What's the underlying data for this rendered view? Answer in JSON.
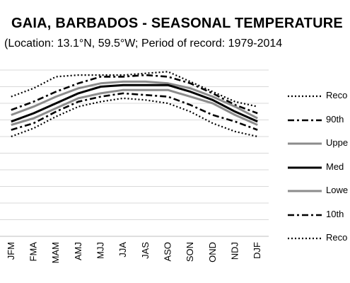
{
  "chart_data": {
    "type": "line",
    "title": "GAIA, BARBADOS - SEASONAL TEMPERATURE",
    "subtitle": "(Location: 13.1°N, 59.5°W; Period of record: 1979-2014",
    "categories": [
      "JFM",
      "FMA",
      "MAM",
      "AMJ",
      "MJJ",
      "JJA",
      "JAS",
      "ASO",
      "SON",
      "OND",
      "NDJ",
      "DJF"
    ],
    "ylim": [
      0,
      10
    ],
    "grid": true,
    "legend_position": "right",
    "series": [
      {
        "name": "Reco",
        "style": "dotted",
        "color": "#000000",
        "width": 2.2,
        "values": [
          8.4,
          8.9,
          9.6,
          9.7,
          9.7,
          9.7,
          9.8,
          9.9,
          9.3,
          8.7,
          8.1,
          7.8
        ]
      },
      {
        "name": "90th",
        "style": "dashdot",
        "color": "#000000",
        "width": 2.6,
        "values": [
          7.6,
          8.1,
          8.7,
          9.2,
          9.6,
          9.6,
          9.7,
          9.6,
          9.2,
          8.6,
          7.9,
          7.4
        ]
      },
      {
        "name": "Uppe",
        "style": "solid",
        "color": "#8c8c8c",
        "width": 3,
        "values": [
          7.3,
          7.8,
          8.4,
          8.9,
          9.2,
          9.3,
          9.3,
          9.2,
          8.9,
          8.4,
          7.8,
          7.1
        ]
      },
      {
        "name": "Med",
        "style": "solid",
        "color": "#000000",
        "width": 3,
        "values": [
          6.9,
          7.4,
          8.0,
          8.6,
          9.0,
          9.1,
          9.1,
          9.1,
          8.7,
          8.2,
          7.5,
          6.9
        ]
      },
      {
        "name": "Lowe",
        "style": "solid",
        "color": "#8c8c8c",
        "width": 3,
        "values": [
          6.7,
          7.1,
          7.7,
          8.3,
          8.6,
          8.8,
          8.8,
          8.8,
          8.4,
          8.0,
          7.3,
          6.7
        ]
      },
      {
        "name": "10th",
        "style": "dashdot",
        "color": "#000000",
        "width": 2.6,
        "values": [
          6.4,
          6.8,
          7.5,
          8.1,
          8.4,
          8.6,
          8.5,
          8.4,
          7.9,
          7.3,
          6.9,
          6.4
        ]
      },
      {
        "name": "Reco",
        "style": "dotted",
        "color": "#000000",
        "width": 2.2,
        "values": [
          6.0,
          6.5,
          7.2,
          7.8,
          8.1,
          8.3,
          8.2,
          8.0,
          7.5,
          6.8,
          6.3,
          6.0
        ]
      }
    ]
  }
}
